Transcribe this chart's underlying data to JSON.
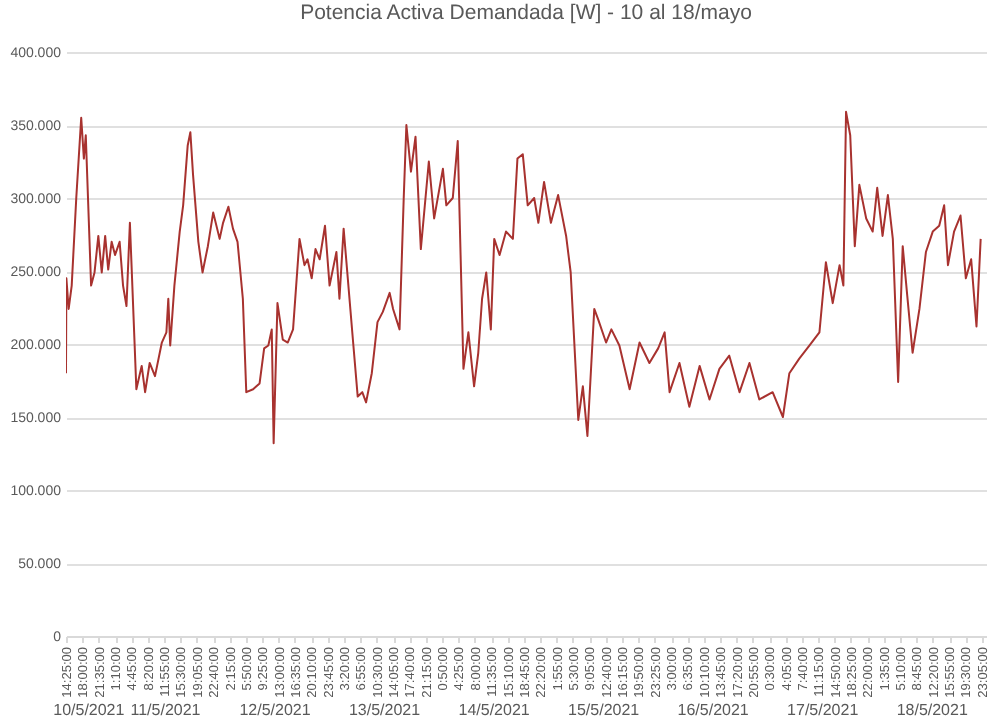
{
  "chart_data": {
    "type": "line",
    "title": "Potencia Activa Demandada [W] - 10 al 18/mayo",
    "x": [
      "2021-05-10T14:25",
      "2021-05-10T14:30",
      "2021-05-10T15:00",
      "2021-05-10T15:40",
      "2021-05-10T16:40",
      "2021-05-10T17:45",
      "2021-05-10T18:20",
      "2021-05-10T18:45",
      "2021-05-10T19:55",
      "2021-05-10T20:40",
      "2021-05-10T21:30",
      "2021-05-10T22:15",
      "2021-05-10T23:00",
      "2021-05-10T23:40",
      "2021-05-11T00:25",
      "2021-05-11T01:10",
      "2021-05-11T02:10",
      "2021-05-11T02:55",
      "2021-05-11T03:40",
      "2021-05-11T04:25",
      "2021-05-11T05:50",
      "2021-05-11T07:00",
      "2021-05-11T07:45",
      "2021-05-11T08:45",
      "2021-05-11T09:55",
      "2021-05-11T11:25",
      "2021-05-11T12:25",
      "2021-05-11T12:50",
      "2021-05-11T13:15",
      "2021-05-11T14:10",
      "2021-05-11T15:20",
      "2021-05-11T16:05",
      "2021-05-11T17:05",
      "2021-05-11T17:40",
      "2021-05-11T18:15",
      "2021-05-11T19:25",
      "2021-05-11T20:20",
      "2021-05-11T21:30",
      "2021-05-11T22:40",
      "2021-05-12T00:05",
      "2021-05-12T00:50",
      "2021-05-12T02:00",
      "2021-05-12T03:00",
      "2021-05-12T04:00",
      "2021-05-12T05:10",
      "2021-05-12T05:55",
      "2021-05-12T07:25",
      "2021-05-12T08:50",
      "2021-05-12T09:50",
      "2021-05-12T10:45",
      "2021-05-12T11:30",
      "2021-05-12T11:55",
      "2021-05-12T12:45",
      "2021-05-12T13:55",
      "2021-05-12T15:00",
      "2021-05-12T16:10",
      "2021-05-12T17:35",
      "2021-05-12T18:40",
      "2021-05-12T19:20",
      "2021-05-12T20:15",
      "2021-05-12T21:05",
      "2021-05-12T22:00",
      "2021-05-12T23:10",
      "2021-05-13T00:10",
      "2021-05-13T01:40",
      "2021-05-13T02:20",
      "2021-05-13T03:15",
      "2021-05-13T05:20",
      "2021-05-13T06:20",
      "2021-05-13T07:20",
      "2021-05-13T08:10",
      "2021-05-13T09:25",
      "2021-05-13T10:40",
      "2021-05-13T11:50",
      "2021-05-13T13:20",
      "2021-05-13T14:05",
      "2021-05-13T15:30",
      "2021-05-13T16:25",
      "2021-05-13T17:00",
      "2021-05-13T18:00",
      "2021-05-13T19:00",
      "2021-05-13T20:10",
      "2021-05-13T21:55",
      "2021-05-13T23:05",
      "2021-05-14T01:00",
      "2021-05-14T01:45",
      "2021-05-14T03:10",
      "2021-05-14T04:15",
      "2021-05-14T05:30",
      "2021-05-14T06:35",
      "2021-05-14T07:50",
      "2021-05-14T08:45",
      "2021-05-14T09:35",
      "2021-05-14T10:30",
      "2021-05-14T11:30",
      "2021-05-14T12:15",
      "2021-05-14T13:25",
      "2021-05-14T14:50",
      "2021-05-14T16:20",
      "2021-05-14T17:20",
      "2021-05-14T18:30",
      "2021-05-14T19:35",
      "2021-05-14T21:00",
      "2021-05-14T21:55",
      "2021-05-14T23:10",
      "2021-05-15T00:40",
      "2021-05-15T02:15",
      "2021-05-15T04:00",
      "2021-05-15T05:00",
      "2021-05-15T06:40",
      "2021-05-15T07:40",
      "2021-05-15T08:40",
      "2021-05-15T10:10",
      "2021-05-15T11:00",
      "2021-05-15T12:45",
      "2021-05-15T13:55",
      "2021-05-15T15:40",
      "2021-05-15T17:55",
      "2021-05-15T20:05",
      "2021-05-15T22:15",
      "2021-05-16T00:10",
      "2021-05-16T01:35",
      "2021-05-16T02:40",
      "2021-05-16T04:50",
      "2021-05-16T07:00",
      "2021-05-16T09:15",
      "2021-05-16T11:25",
      "2021-05-16T13:35",
      "2021-05-16T15:45",
      "2021-05-16T18:00",
      "2021-05-16T20:10",
      "2021-05-16T22:20",
      "2021-05-17T01:15",
      "2021-05-17T03:30",
      "2021-05-17T04:55",
      "2021-05-17T07:05",
      "2021-05-17T09:20",
      "2021-05-17T11:30",
      "2021-05-17T12:55",
      "2021-05-17T14:25",
      "2021-05-17T15:55",
      "2021-05-17T16:45",
      "2021-05-17T17:20",
      "2021-05-17T18:15",
      "2021-05-17T19:15",
      "2021-05-17T20:15",
      "2021-05-17T21:45",
      "2021-05-17T23:10",
      "2021-05-18T00:10",
      "2021-05-18T01:20",
      "2021-05-18T02:30",
      "2021-05-18T03:35",
      "2021-05-18T04:45",
      "2021-05-18T05:45",
      "2021-05-18T06:45",
      "2021-05-18T07:55",
      "2021-05-18T09:25",
      "2021-05-18T10:50",
      "2021-05-18T12:20",
      "2021-05-18T13:45",
      "2021-05-18T14:50",
      "2021-05-18T15:40",
      "2021-05-18T17:00",
      "2021-05-18T18:25",
      "2021-05-18T19:35",
      "2021-05-18T20:45",
      "2021-05-18T21:55",
      "2021-05-18T22:50"
    ],
    "series": [
      {
        "color": "#a8322f",
        "values": [
          180000,
          245000,
          224000,
          240000,
          300000,
          355000,
          327000,
          343000,
          240000,
          249000,
          274000,
          249000,
          274000,
          251000,
          270000,
          261000,
          270000,
          240000,
          226000,
          283000,
          169000,
          185000,
          167000,
          187000,
          178000,
          201000,
          208000,
          231000,
          199000,
          240000,
          277000,
          295000,
          336000,
          345000,
          316000,
          270000,
          249000,
          267000,
          290000,
          272000,
          283000,
          294000,
          279000,
          270000,
          231000,
          167000,
          169000,
          173000,
          197000,
          199000,
          210000,
          132000,
          228000,
          203000,
          201000,
          210000,
          272000,
          254000,
          258000,
          245000,
          265000,
          258000,
          281000,
          240000,
          263000,
          231000,
          279000,
          201000,
          164000,
          167000,
          160000,
          180000,
          215000,
          222000,
          235000,
          224000,
          210000,
          300000,
          350000,
          318000,
          342000,
          265000,
          325000,
          286000,
          320000,
          295000,
          300000,
          339000,
          183000,
          208000,
          171000,
          194000,
          231000,
          249000,
          210000,
          272000,
          261000,
          277000,
          272000,
          327000,
          330000,
          295000,
          300000,
          283000,
          311000,
          283000,
          302000,
          274000,
          249000,
          148000,
          171000,
          137000,
          224000,
          217000,
          201000,
          210000,
          199000,
          169000,
          201000,
          187000,
          197000,
          208000,
          167000,
          187000,
          157000,
          185000,
          162000,
          183000,
          192000,
          167000,
          187000,
          162000,
          167000,
          150000,
          180000,
          190000,
          199000,
          208000,
          256000,
          228000,
          254000,
          240000,
          359000,
          343000,
          267000,
          309000,
          286000,
          277000,
          307000,
          274000,
          302000,
          272000,
          174000,
          267000,
          233000,
          194000,
          224000,
          263000,
          277000,
          281000,
          295000,
          254000,
          277000,
          288000,
          245000,
          258000,
          212000,
          272000
        ]
      }
    ],
    "xlim": [
      "2021-05-10T14:25",
      "2021-05-19T00:00"
    ],
    "xticks": [
      {
        "value": "2021-05-10T14:25",
        "label": "14:25:00"
      },
      {
        "value": "2021-05-10T18:00",
        "label": "18:00:00"
      },
      {
        "value": "2021-05-10T21:35",
        "label": "21:35:00"
      },
      {
        "value": "2021-05-11T01:10",
        "label": "1:10:00"
      },
      {
        "value": "2021-05-11T04:45",
        "label": "4:45:00"
      },
      {
        "value": "2021-05-11T08:20",
        "label": "8:20:00"
      },
      {
        "value": "2021-05-11T11:55",
        "label": "11:55:00"
      },
      {
        "value": "2021-05-11T15:30",
        "label": "15:30:00"
      },
      {
        "value": "2021-05-11T19:05",
        "label": "19:05:00"
      },
      {
        "value": "2021-05-11T22:40",
        "label": "22:40:00"
      },
      {
        "value": "2021-05-12T02:15",
        "label": "2:15:00"
      },
      {
        "value": "2021-05-12T05:50",
        "label": "5:50:00"
      },
      {
        "value": "2021-05-12T09:25",
        "label": "9:25:00"
      },
      {
        "value": "2021-05-12T13:00",
        "label": "13:00:00"
      },
      {
        "value": "2021-05-12T16:35",
        "label": "16:35:00"
      },
      {
        "value": "2021-05-12T20:10",
        "label": "20:10:00"
      },
      {
        "value": "2021-05-12T23:45",
        "label": "23:45:00"
      },
      {
        "value": "2021-05-13T03:20",
        "label": "3:20:00"
      },
      {
        "value": "2021-05-13T06:55",
        "label": "6:55:00"
      },
      {
        "value": "2021-05-13T10:30",
        "label": "10:30:00"
      },
      {
        "value": "2021-05-13T14:05",
        "label": "14:05:00"
      },
      {
        "value": "2021-05-13T17:40",
        "label": "17:40:00"
      },
      {
        "value": "2021-05-13T21:15",
        "label": "21:15:00"
      },
      {
        "value": "2021-05-14T00:50",
        "label": "0:50:00"
      },
      {
        "value": "2021-05-14T04:25",
        "label": "4:25:00"
      },
      {
        "value": "2021-05-14T08:00",
        "label": "8:00:00"
      },
      {
        "value": "2021-05-14T11:35",
        "label": "11:35:00"
      },
      {
        "value": "2021-05-14T15:10",
        "label": "15:10:00"
      },
      {
        "value": "2021-05-14T18:45",
        "label": "18:45:00"
      },
      {
        "value": "2021-05-14T22:20",
        "label": "22:20:00"
      },
      {
        "value": "2021-05-15T01:55",
        "label": "1:55:00"
      },
      {
        "value": "2021-05-15T05:30",
        "label": "5:30:00"
      },
      {
        "value": "2021-05-15T09:05",
        "label": "9:05:00"
      },
      {
        "value": "2021-05-15T12:40",
        "label": "12:40:00"
      },
      {
        "value": "2021-05-15T16:15",
        "label": "16:15:00"
      },
      {
        "value": "2021-05-15T19:50",
        "label": "19:50:00"
      },
      {
        "value": "2021-05-15T23:25",
        "label": "23:25:00"
      },
      {
        "value": "2021-05-16T03:00",
        "label": "3:00:00"
      },
      {
        "value": "2021-05-16T06:35",
        "label": "6:35:00"
      },
      {
        "value": "2021-05-16T10:10",
        "label": "10:10:00"
      },
      {
        "value": "2021-05-16T13:45",
        "label": "13:45:00"
      },
      {
        "value": "2021-05-16T17:20",
        "label": "17:20:00"
      },
      {
        "value": "2021-05-16T20:55",
        "label": "20:55:00"
      },
      {
        "value": "2021-05-17T00:30",
        "label": "0:30:00"
      },
      {
        "value": "2021-05-17T04:05",
        "label": "4:05:00"
      },
      {
        "value": "2021-05-17T07:40",
        "label": "7:40:00"
      },
      {
        "value": "2021-05-17T11:15",
        "label": "11:15:00"
      },
      {
        "value": "2021-05-17T14:50",
        "label": "14:50:00"
      },
      {
        "value": "2021-05-17T18:25",
        "label": "18:25:00"
      },
      {
        "value": "2021-05-17T22:00",
        "label": "22:00:00"
      },
      {
        "value": "2021-05-18T01:35",
        "label": "1:35:00"
      },
      {
        "value": "2021-05-18T05:10",
        "label": "5:10:00"
      },
      {
        "value": "2021-05-18T08:45",
        "label": "8:45:00"
      },
      {
        "value": "2021-05-18T12:20",
        "label": "12:20:00"
      },
      {
        "value": "2021-05-18T15:55",
        "label": "15:55:00"
      },
      {
        "value": "2021-05-18T19:30",
        "label": "19:30:00"
      },
      {
        "value": "2021-05-18T23:05",
        "label": "23:05:00"
      }
    ],
    "ylim": [
      0,
      400000
    ],
    "yticks": [
      0,
      {
        "value": 50000,
        "label": "50.000"
      },
      {
        "value": 100000,
        "label": "100.000"
      },
      {
        "value": 150000,
        "label": "150.000"
      },
      {
        "value": 200000,
        "label": "200.000"
      },
      {
        "value": 250000,
        "label": "250.000"
      },
      {
        "value": 300000,
        "label": "300.000"
      },
      {
        "value": 350000,
        "label": "350.000"
      },
      {
        "value": 400000,
        "label": "400.000"
      }
    ],
    "grid": "y",
    "x2lim": [
      "2021-05-10T14:25",
      "2021-05-19T00:00"
    ],
    "x2ticks": [
      {
        "value": "2021-05-10T19:12",
        "label": "10/5/2021"
      },
      {
        "value": "2021-05-11T12:00",
        "label": "11/5/2021"
      },
      {
        "value": "2021-05-12T12:00",
        "label": "12/5/2021"
      },
      {
        "value": "2021-05-13T12:00",
        "label": "13/5/2021"
      },
      {
        "value": "2021-05-14T12:00",
        "label": "14/5/2021"
      },
      {
        "value": "2021-05-15T12:00",
        "label": "15/5/2021"
      },
      {
        "value": "2021-05-16T12:00",
        "label": "16/5/2021"
      },
      {
        "value": "2021-05-17T12:00",
        "label": "17/5/2021"
      },
      {
        "value": "2021-05-18T12:00",
        "label": "18/5/2021"
      }
    ]
  }
}
